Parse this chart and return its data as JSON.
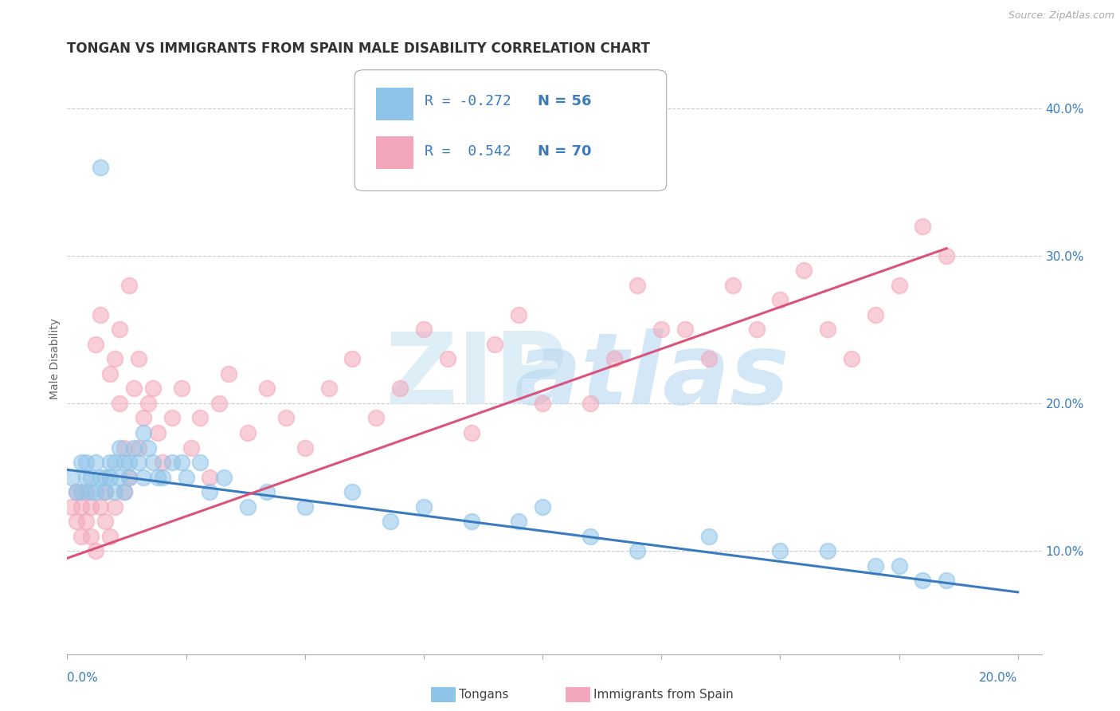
{
  "title": "TONGAN VS IMMIGRANTS FROM SPAIN MALE DISABILITY CORRELATION CHART",
  "source": "Source: ZipAtlas.com",
  "ylabel": "Male Disability",
  "xlim": [
    0.0,
    0.205
  ],
  "ylim": [
    0.03,
    0.43
  ],
  "yticks": [
    0.1,
    0.2,
    0.3,
    0.4
  ],
  "ytick_labels": [
    "10.0%",
    "20.0%",
    "30.0%",
    "40.0%"
  ],
  "xticks": [
    0.0,
    0.025,
    0.05,
    0.075,
    0.1,
    0.125,
    0.15,
    0.175,
    0.2
  ],
  "legend_r_blue": "R = -0.272",
  "legend_n_blue": "N = 56",
  "legend_r_pink": "R =  0.542",
  "legend_n_pink": "N = 70",
  "blue_color": "#8ec4e8",
  "pink_color": "#f4a7bb",
  "blue_line_color": "#3a7bbf",
  "pink_line_color": "#d9537a",
  "legend_text_color": "#3a7bbf",
  "blue_scatter_x": [
    0.001,
    0.002,
    0.003,
    0.003,
    0.004,
    0.004,
    0.005,
    0.005,
    0.006,
    0.006,
    0.007,
    0.007,
    0.008,
    0.008,
    0.009,
    0.009,
    0.01,
    0.01,
    0.011,
    0.011,
    0.012,
    0.012,
    0.013,
    0.013,
    0.014,
    0.015,
    0.016,
    0.016,
    0.017,
    0.018,
    0.019,
    0.02,
    0.022,
    0.024,
    0.025,
    0.028,
    0.03,
    0.033,
    0.038,
    0.042,
    0.05,
    0.06,
    0.068,
    0.075,
    0.085,
    0.095,
    0.1,
    0.11,
    0.12,
    0.135,
    0.15,
    0.16,
    0.17,
    0.175,
    0.18,
    0.185
  ],
  "blue_scatter_y": [
    0.15,
    0.14,
    0.16,
    0.14,
    0.15,
    0.16,
    0.14,
    0.15,
    0.16,
    0.14,
    0.15,
    0.36,
    0.14,
    0.15,
    0.16,
    0.15,
    0.14,
    0.16,
    0.17,
    0.15,
    0.16,
    0.14,
    0.15,
    0.16,
    0.17,
    0.16,
    0.18,
    0.15,
    0.17,
    0.16,
    0.15,
    0.15,
    0.16,
    0.16,
    0.15,
    0.16,
    0.14,
    0.15,
    0.13,
    0.14,
    0.13,
    0.14,
    0.12,
    0.13,
    0.12,
    0.12,
    0.13,
    0.11,
    0.1,
    0.11,
    0.1,
    0.1,
    0.09,
    0.09,
    0.08,
    0.08
  ],
  "pink_scatter_x": [
    0.001,
    0.002,
    0.002,
    0.003,
    0.003,
    0.004,
    0.004,
    0.005,
    0.005,
    0.006,
    0.006,
    0.007,
    0.007,
    0.008,
    0.008,
    0.009,
    0.009,
    0.01,
    0.01,
    0.011,
    0.011,
    0.012,
    0.012,
    0.013,
    0.013,
    0.014,
    0.015,
    0.015,
    0.016,
    0.017,
    0.018,
    0.019,
    0.02,
    0.022,
    0.024,
    0.026,
    0.028,
    0.03,
    0.032,
    0.034,
    0.038,
    0.042,
    0.046,
    0.05,
    0.055,
    0.06,
    0.065,
    0.07,
    0.075,
    0.08,
    0.085,
    0.09,
    0.095,
    0.1,
    0.11,
    0.115,
    0.12,
    0.125,
    0.13,
    0.135,
    0.14,
    0.145,
    0.15,
    0.155,
    0.16,
    0.165,
    0.17,
    0.175,
    0.18,
    0.185
  ],
  "pink_scatter_y": [
    0.13,
    0.12,
    0.14,
    0.11,
    0.13,
    0.12,
    0.14,
    0.13,
    0.11,
    0.1,
    0.24,
    0.13,
    0.26,
    0.12,
    0.14,
    0.22,
    0.11,
    0.23,
    0.13,
    0.2,
    0.25,
    0.17,
    0.14,
    0.28,
    0.15,
    0.21,
    0.23,
    0.17,
    0.19,
    0.2,
    0.21,
    0.18,
    0.16,
    0.19,
    0.21,
    0.17,
    0.19,
    0.15,
    0.2,
    0.22,
    0.18,
    0.21,
    0.19,
    0.17,
    0.21,
    0.23,
    0.19,
    0.21,
    0.25,
    0.23,
    0.18,
    0.24,
    0.26,
    0.2,
    0.2,
    0.23,
    0.28,
    0.25,
    0.25,
    0.23,
    0.28,
    0.25,
    0.27,
    0.29,
    0.25,
    0.23,
    0.26,
    0.28,
    0.32,
    0.3
  ],
  "blue_fit_x": [
    0.0,
    0.2
  ],
  "blue_fit_y": [
    0.155,
    0.072
  ],
  "pink_fit_x": [
    0.0,
    0.185
  ],
  "pink_fit_y": [
    0.095,
    0.305
  ],
  "background_color": "#ffffff",
  "grid_color": "#cccccc",
  "title_fontsize": 12,
  "axis_label_fontsize": 10,
  "tick_fontsize": 11,
  "legend_fontsize": 13
}
